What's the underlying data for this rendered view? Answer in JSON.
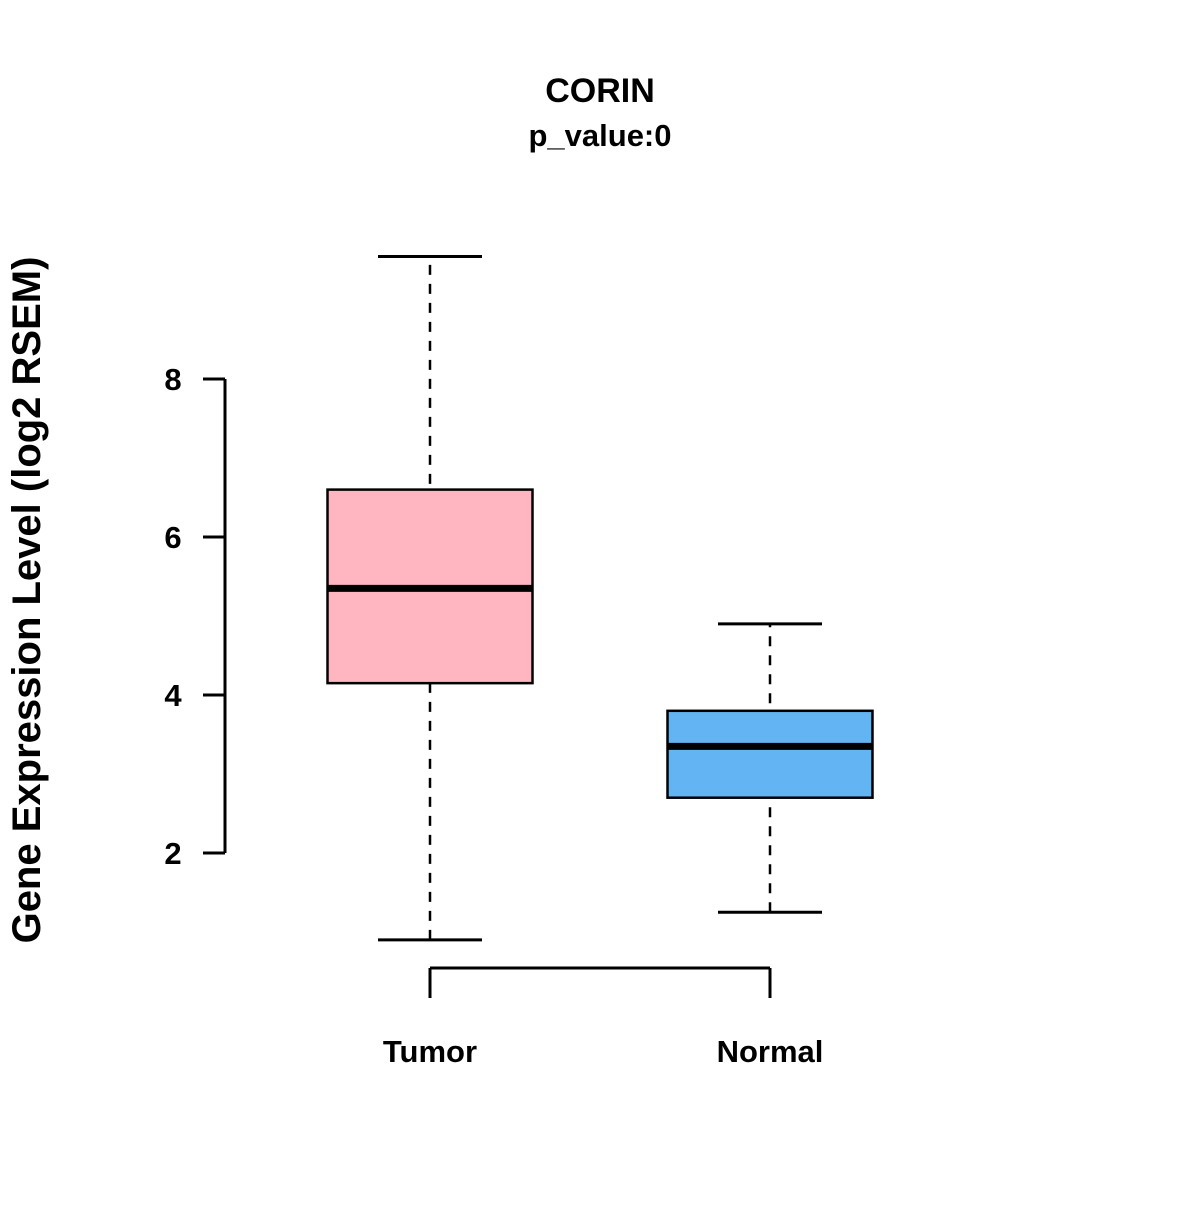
{
  "chart_data": {
    "type": "boxplot",
    "title": "CORIN",
    "subtitle": "p_value:0",
    "ylabel": "Gene Expression Level (log2 RSEM)",
    "xlabel": "",
    "ylim": [
      0.5,
      9.8
    ],
    "yticks": [
      2,
      4,
      6,
      8
    ],
    "grid": false,
    "legend": "none",
    "groups": [
      {
        "label": "Tumor",
        "color": "#FFB6C1",
        "whisker_low": 0.9,
        "q1": 4.15,
        "median": 5.35,
        "q3": 6.6,
        "whisker_high": 9.55
      },
      {
        "label": "Normal",
        "color": "#63B4F2",
        "whisker_low": 1.25,
        "q1": 2.7,
        "median": 3.35,
        "q3": 3.8,
        "whisker_high": 4.9
      }
    ]
  }
}
